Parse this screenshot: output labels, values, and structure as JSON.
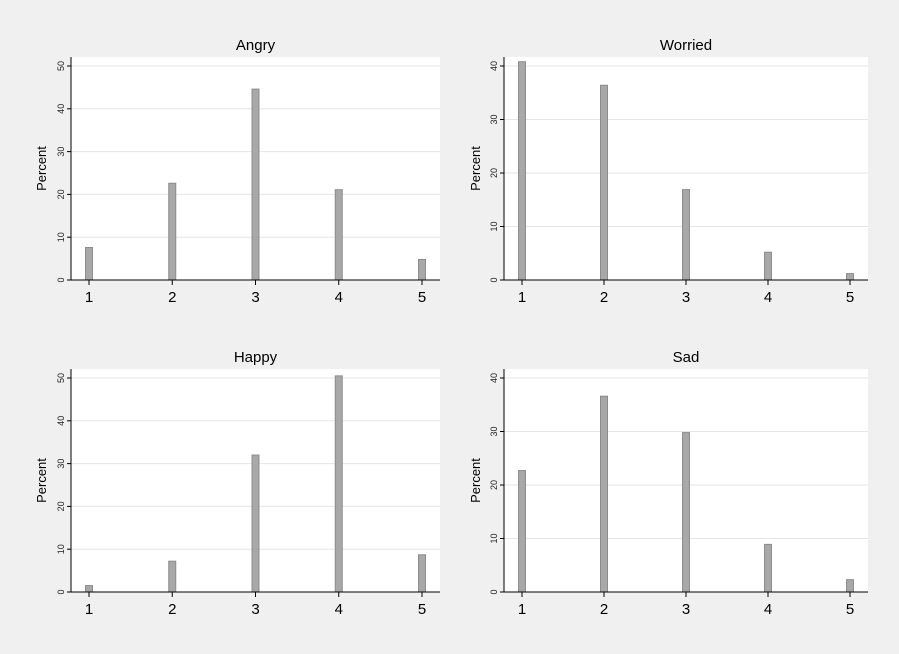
{
  "figure": {
    "background": "#f0f0f0",
    "plot_background": "#ffffff",
    "bar_color": "#a8a8a8",
    "grid_color": "#e6e6e6"
  },
  "chart_data": [
    {
      "type": "bar",
      "title": "Angry",
      "xlabel": "",
      "ylabel": "Percent",
      "categories": [
        "1",
        "2",
        "3",
        "4",
        "5"
      ],
      "values": [
        7.6,
        22.6,
        44.6,
        21.1,
        4.8
      ],
      "xlim": [
        1,
        5
      ],
      "ylim": [
        0,
        50
      ],
      "yticks": [
        0,
        10,
        20,
        30,
        40,
        50
      ],
      "grid": true
    },
    {
      "type": "bar",
      "title": "Worried",
      "xlabel": "",
      "ylabel": "Percent",
      "categories": [
        "1",
        "2",
        "3",
        "4",
        "5"
      ],
      "values": [
        40.8,
        36.4,
        16.9,
        5.2,
        1.2
      ],
      "xlim": [
        1,
        5
      ],
      "ylim": [
        0,
        40
      ],
      "yticks": [
        0,
        10,
        20,
        30,
        40
      ],
      "grid": true
    },
    {
      "type": "bar",
      "title": "Happy",
      "xlabel": "",
      "ylabel": "Percent",
      "categories": [
        "1",
        "2",
        "3",
        "4",
        "5"
      ],
      "values": [
        1.5,
        7.2,
        32.0,
        50.5,
        8.7
      ],
      "xlim": [
        1,
        5
      ],
      "ylim": [
        0,
        50
      ],
      "yticks": [
        0,
        10,
        20,
        30,
        40,
        50
      ],
      "grid": true
    },
    {
      "type": "bar",
      "title": "Sad",
      "xlabel": "",
      "ylabel": "Percent",
      "categories": [
        "1",
        "2",
        "3",
        "4",
        "5"
      ],
      "values": [
        22.7,
        36.6,
        29.8,
        8.9,
        2.3
      ],
      "xlim": [
        1,
        5
      ],
      "ylim": [
        0,
        40
      ],
      "yticks": [
        0,
        10,
        20,
        30,
        40
      ],
      "grid": true
    }
  ]
}
